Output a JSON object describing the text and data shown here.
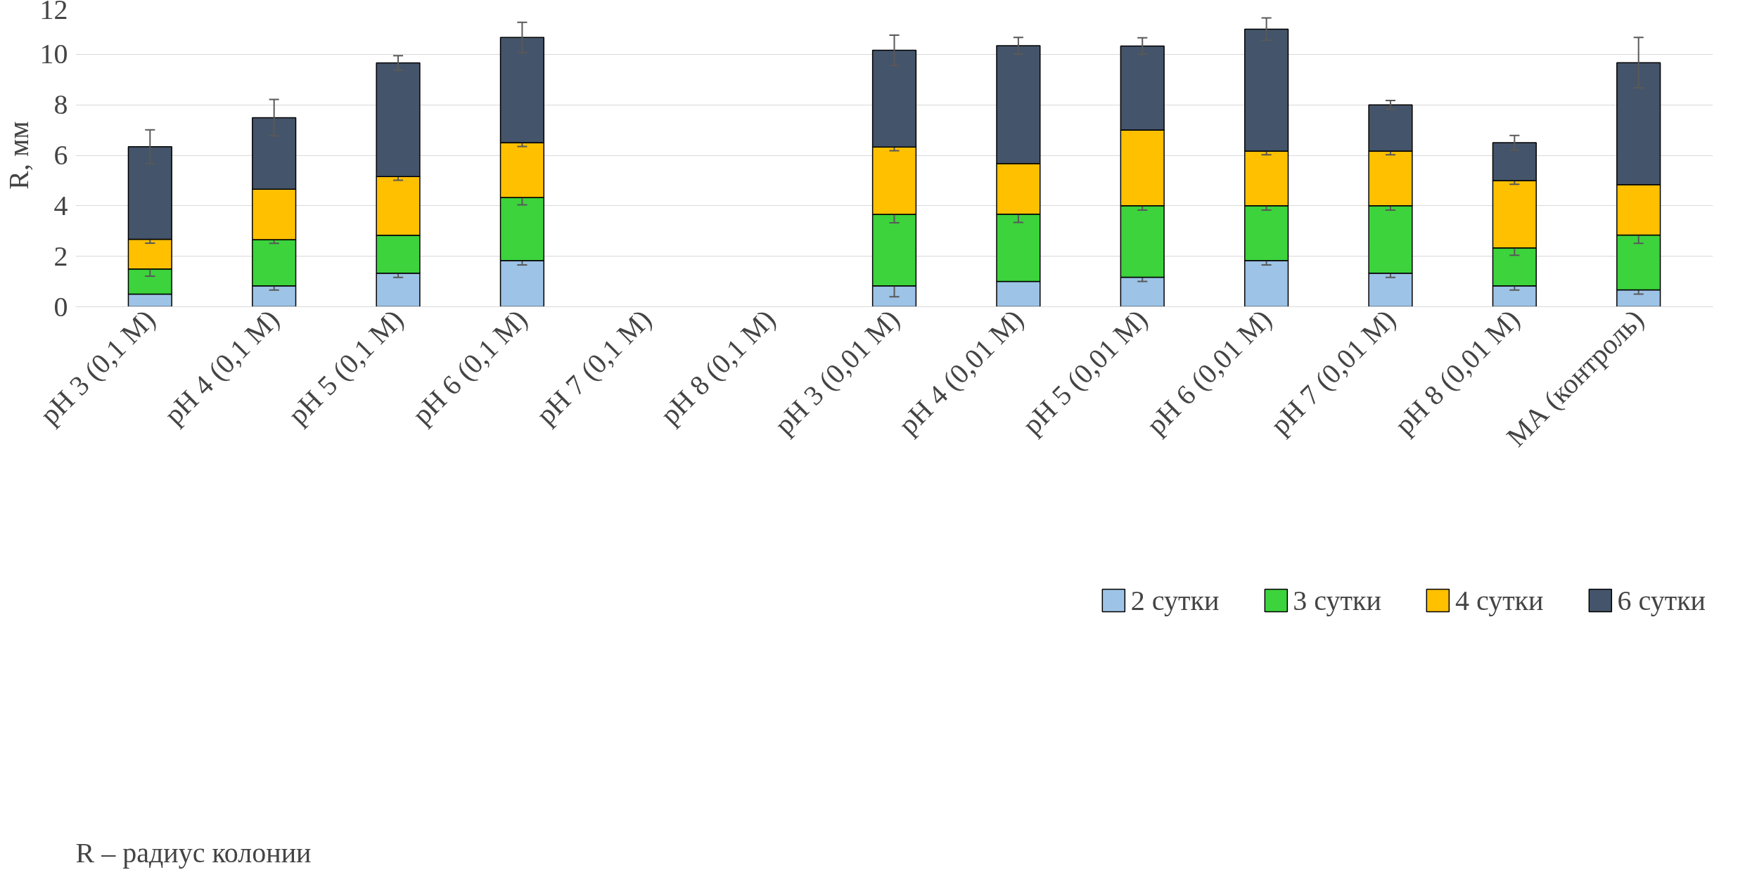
{
  "chart_data": {
    "type": "bar",
    "stacked": true,
    "ylabel": "R, мм",
    "categories": [
      "pH 3 (0,1 M)",
      "pH 4 (0,1 M)",
      "pH 5 (0,1 M)",
      "pH 6 (0,1 M)",
      "pH 7 (0,1 M)",
      "pH 8 (0,1 M)",
      "pH 3 (0,01 M)",
      "pH 4 (0,01 M)",
      "pH 5 (0,01 M)",
      "pH 6 (0,01 M)",
      "pH 7 (0,01 M)",
      "pH 8 (0,01 M)",
      "МА (контроль)"
    ],
    "series": [
      {
        "name": "2 сутки",
        "color": "#9dc3e6",
        "values": [
          0.5,
          0.83,
          1.33,
          1.83,
          null,
          null,
          0.83,
          1.0,
          1.17,
          1.83,
          1.33,
          0.83,
          0.67
        ],
        "errors": [
          null,
          0.17,
          0.17,
          0.17,
          null,
          null,
          0.43,
          null,
          0.17,
          0.17,
          0.17,
          0.17,
          0.17
        ]
      },
      {
        "name": "3 сутки",
        "color": "#3cd33c",
        "values": [
          1.0,
          1.83,
          1.5,
          2.5,
          null,
          null,
          2.83,
          2.67,
          2.83,
          2.17,
          2.67,
          1.5,
          2.17
        ],
        "errors": [
          0.29,
          0.15,
          null,
          0.29,
          null,
          null,
          0.33,
          0.33,
          0.17,
          0.17,
          0.17,
          0.29,
          0.33
        ]
      },
      {
        "name": "4 сутки",
        "color": "#ffc000",
        "values": [
          1.17,
          2.0,
          2.33,
          2.17,
          null,
          null,
          2.67,
          2.0,
          3.0,
          2.17,
          2.17,
          2.67,
          2.0
        ],
        "errors": [
          0.15,
          null,
          0.15,
          0.15,
          null,
          null,
          0.15,
          null,
          null,
          0.15,
          0.15,
          0.15,
          null
        ]
      },
      {
        "name": "6 сутки",
        "color": "#44546a",
        "values": [
          3.67,
          2.83,
          4.5,
          4.17,
          null,
          null,
          3.83,
          4.67,
          3.33,
          4.83,
          1.83,
          1.5,
          4.83
        ],
        "errors": [
          0.67,
          0.72,
          0.29,
          0.6,
          null,
          null,
          0.6,
          0.33,
          0.33,
          0.44,
          0.17,
          0.29,
          1.0
        ]
      }
    ],
    "ylim": [
      0,
      12
    ],
    "yticks": [
      0,
      2,
      4,
      6,
      8,
      10,
      12
    ],
    "grid": "y",
    "legend": "bottom",
    "annotations": [
      "R – радиус колонии"
    ]
  }
}
